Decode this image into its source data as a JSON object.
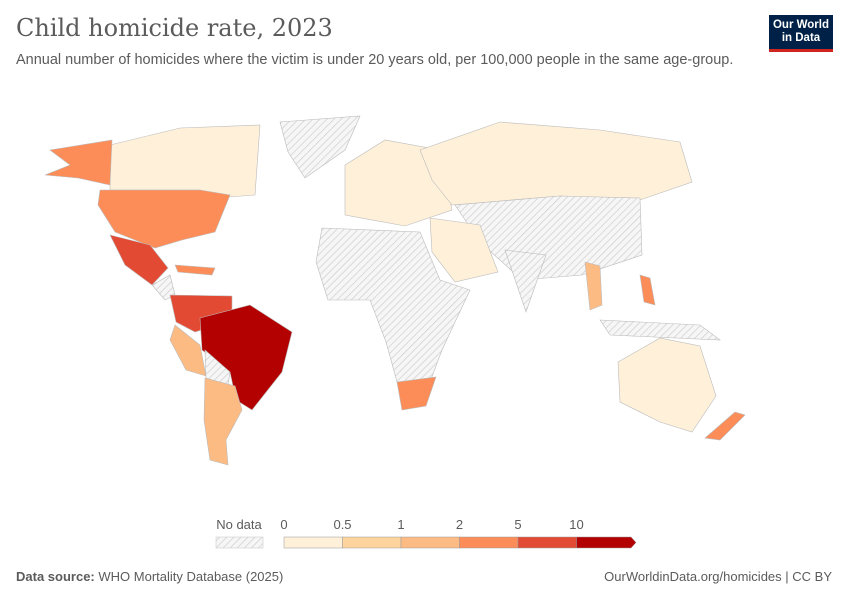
{
  "header": {
    "title": "Child homicide rate, 2023",
    "subtitle": "Annual number of homicides where the victim is under 20 years old, per 100,000 people in the same age-group.",
    "logo": "Our World in Data"
  },
  "legend": {
    "no_data_label": "No data",
    "ticks": [
      "0",
      "0.5",
      "1",
      "2",
      "5",
      "10"
    ],
    "bins": [
      {
        "range": "0–0.5",
        "color": "#fef0d9"
      },
      {
        "range": "0.5–1",
        "color": "#fdd49e"
      },
      {
        "range": "1–2",
        "color": "#fdbb84"
      },
      {
        "range": "2–5",
        "color": "#fc8d59"
      },
      {
        "range": "5–10",
        "color": "#e34a33"
      },
      {
        "range": ">10",
        "color": "#b30000"
      }
    ]
  },
  "footer": {
    "source_label": "Data source:",
    "source": "WHO Mortality Database (2025)",
    "link": "OurWorldinData.org/homicides | CC BY"
  }
}
